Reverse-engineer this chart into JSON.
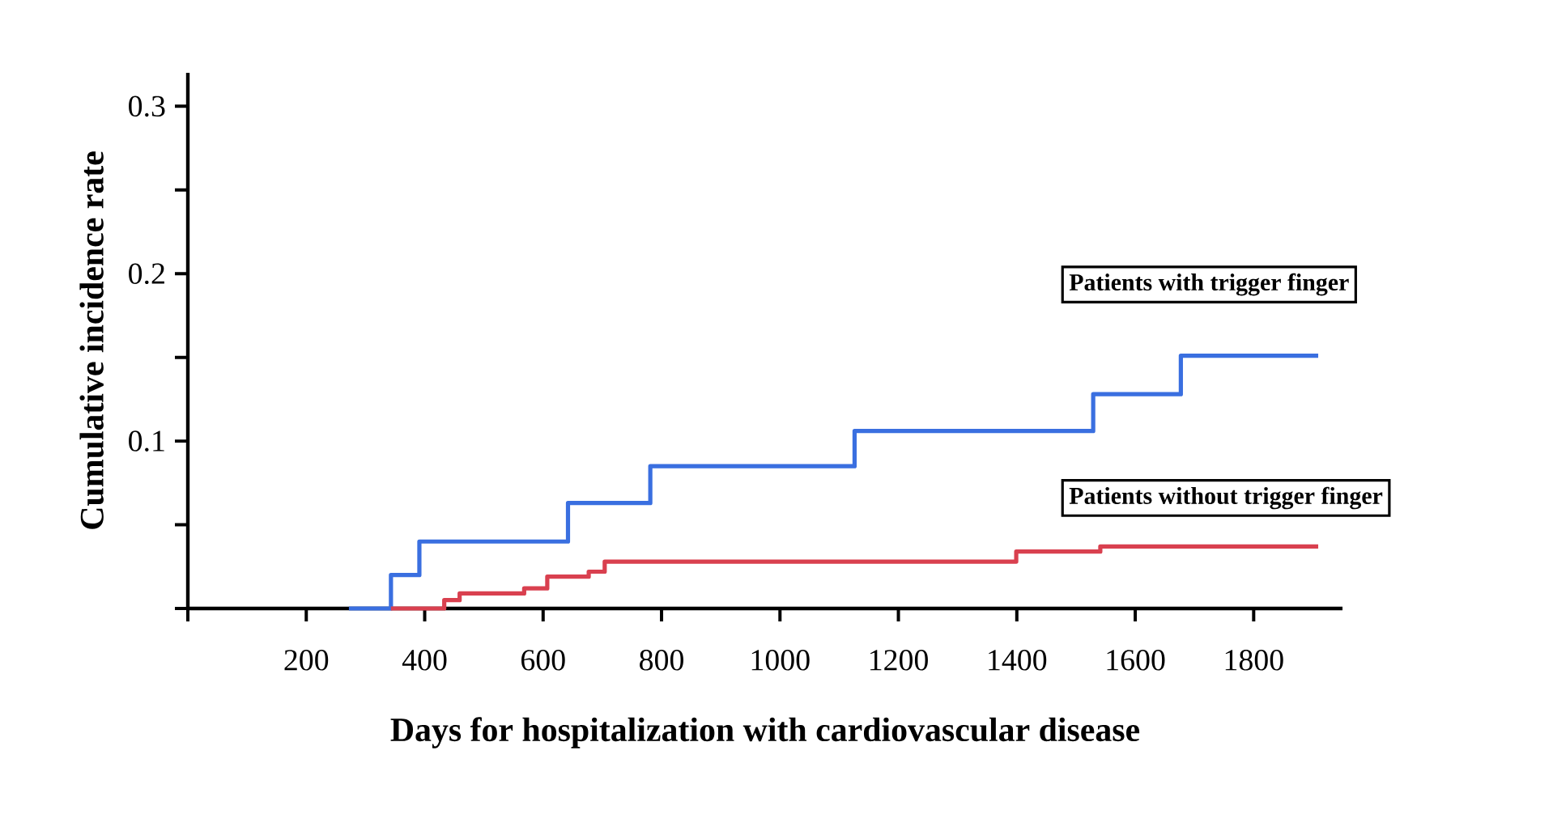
{
  "chart_data": {
    "type": "step",
    "xlabel": "Days for hospitalization with cardiovascular disease",
    "ylabel": "Cumulative incidence rate",
    "xlim": [
      0,
      1950
    ],
    "ylim": [
      0,
      0.32
    ],
    "xticks": [
      {
        "value": 0,
        "label": null
      },
      200,
      400,
      600,
      800,
      1000,
      1200,
      1400,
      1600,
      1800
    ],
    "yticks": [
      {
        "value": 0,
        "label": null
      },
      {
        "value": 0.05,
        "label": null
      },
      0.1,
      {
        "value": 0.15,
        "label": null
      },
      0.2,
      {
        "value": 0.25,
        "label": null
      },
      0.3
    ],
    "grid": false,
    "series": [
      {
        "name": "Patients with trigger finger",
        "color": "#3a6fe0",
        "x": [
          272,
          343,
          391,
          642,
          781,
          1126,
          1529,
          1677,
          1909
        ],
        "values": [
          0,
          0.02,
          0.04,
          0.063,
          0.085,
          0.106,
          0.128,
          0.151,
          0.151
        ]
      },
      {
        "name": "Patients without trigger finger",
        "color": "#d9404f",
        "x": [
          343,
          433,
          459,
          568,
          607,
          677,
          704,
          1399,
          1541,
          1909
        ],
        "values": [
          0,
          0.005,
          0.009,
          0.012,
          0.019,
          0.022,
          0.028,
          0.034,
          0.037,
          0.037
        ]
      }
    ]
  }
}
